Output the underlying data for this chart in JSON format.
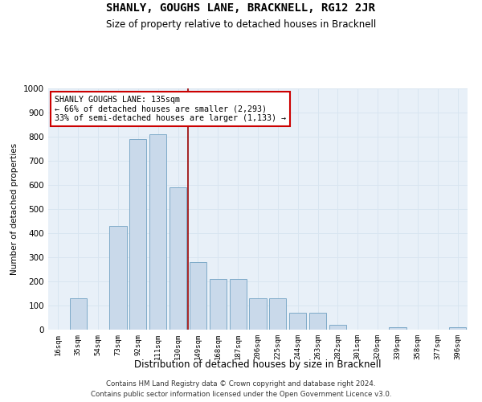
{
  "title": "SHANLY, GOUGHS LANE, BRACKNELL, RG12 2JR",
  "subtitle": "Size of property relative to detached houses in Bracknell",
  "xlabel": "Distribution of detached houses by size in Bracknell",
  "ylabel": "Number of detached properties",
  "categories": [
    "16sqm",
    "35sqm",
    "54sqm",
    "73sqm",
    "92sqm",
    "111sqm",
    "130sqm",
    "149sqm",
    "168sqm",
    "187sqm",
    "206sqm",
    "225sqm",
    "244sqm",
    "263sqm",
    "282sqm",
    "301sqm",
    "320sqm",
    "339sqm",
    "358sqm",
    "377sqm",
    "396sqm"
  ],
  "values": [
    0,
    130,
    0,
    430,
    790,
    810,
    590,
    280,
    210,
    210,
    130,
    130,
    70,
    70,
    20,
    0,
    0,
    10,
    0,
    0,
    10
  ],
  "bar_color": "#c9d9ea",
  "bar_edge_color": "#7eaac8",
  "grid_color": "#d8e5f0",
  "background_color": "#e8f0f8",
  "vline_color": "#990000",
  "vline_pos": 6.5,
  "annotation_text": "SHANLY GOUGHS LANE: 135sqm\n← 66% of detached houses are smaller (2,293)\n33% of semi-detached houses are larger (1,133) →",
  "annotation_box_color": "#ffffff",
  "annotation_box_edge": "#cc0000",
  "ylim": [
    0,
    1000
  ],
  "yticks": [
    0,
    100,
    200,
    300,
    400,
    500,
    600,
    700,
    800,
    900,
    1000
  ],
  "footer_line1": "Contains HM Land Registry data © Crown copyright and database right 2024.",
  "footer_line2": "Contains public sector information licensed under the Open Government Licence v3.0."
}
